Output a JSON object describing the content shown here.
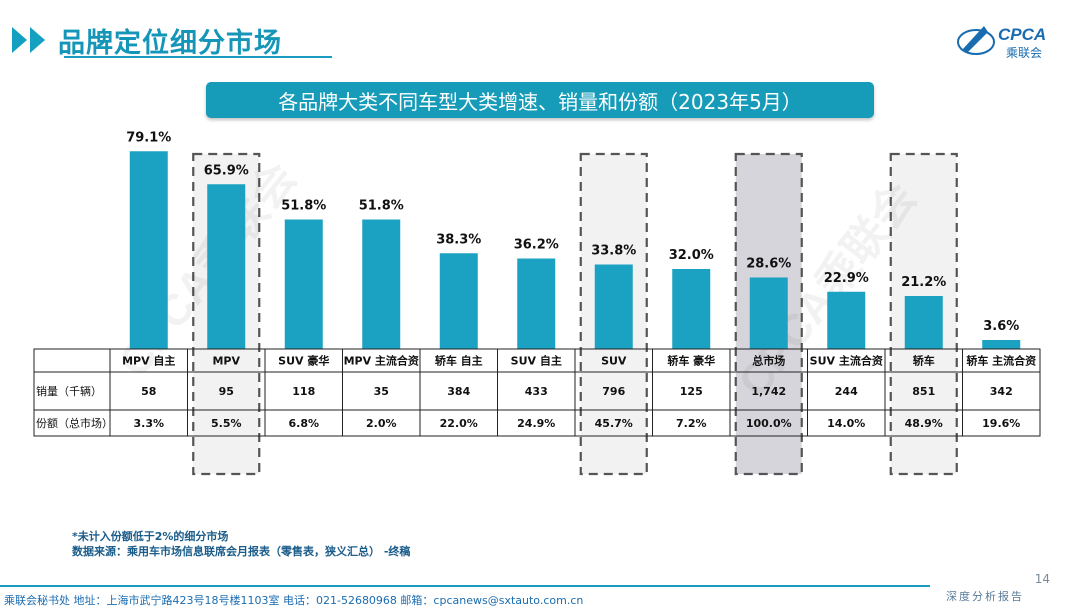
{
  "header": {
    "title": "品牌定位细分市场"
  },
  "logo": {
    "text_main": "CPCA",
    "text_sub": "乘联会"
  },
  "banner": {
    "title": "各品牌大类不同车型大类增速、销量和份额（2023年5月）"
  },
  "watermark": "CPCA乘联会",
  "colors": {
    "bar": "#1ba1c2",
    "accent": "#169bb8",
    "highlight_fill": "#f2f2f2",
    "total_fill": "#d6d5db"
  },
  "chart_data": {
    "type": "bar",
    "categories": [
      "MPV 自主",
      "MPV",
      "SUV 豪华",
      "MPV 主流合资",
      "轿车 自主",
      "SUV 自主",
      "SUV",
      "轿车 豪华",
      "总市场",
      "SUV 主流合资",
      "轿车",
      "轿车 主流合资"
    ],
    "values": [
      79.1,
      65.9,
      51.8,
      51.8,
      38.3,
      36.2,
      33.8,
      32.0,
      28.6,
      22.9,
      21.2,
      3.6
    ],
    "value_labels": [
      "79.1%",
      "65.9%",
      "51.8%",
      "51.8%",
      "38.3%",
      "36.2%",
      "33.8%",
      "32.0%",
      "28.6%",
      "22.9%",
      "21.2%",
      "3.6%"
    ],
    "highlighted": [
      1,
      6,
      8,
      10
    ],
    "total_index": 8,
    "ylim": [
      0,
      80
    ],
    "table": {
      "rows": [
        {
          "label": "销量（千辆）",
          "values": [
            "58",
            "95",
            "118",
            "35",
            "384",
            "433",
            "796",
            "125",
            "1,742",
            "244",
            "851",
            "342"
          ]
        },
        {
          "label": "份额（总市场）",
          "values": [
            "3.3%",
            "5.5%",
            "6.8%",
            "2.0%",
            "22.0%",
            "24.9%",
            "45.7%",
            "7.2%",
            "100.0%",
            "14.0%",
            "48.9%",
            "19.6%"
          ]
        }
      ]
    }
  },
  "notes": {
    "line1": "*未计入份额低于2%的细分市场",
    "line2": "数据来源：乘用车市场信息联席会月报表（零售表，狭义汇总） -终稿"
  },
  "page_number": "14",
  "report_label": "深度分析报告",
  "footer": {
    "text": "乘联会秘书处   地址：上海市武宁路423号18号楼1103室  电话：021-52680968   邮箱：cpcanews@sxtauto.com.cn"
  }
}
